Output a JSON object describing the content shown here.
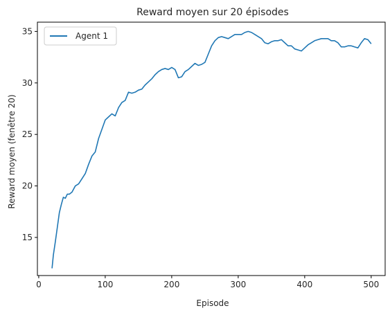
{
  "chart_data": {
    "type": "line",
    "title": "Reward moyen sur 20 épisodes",
    "xlabel": "Episode",
    "ylabel": "Reward moyen (fenêtre 20)",
    "xlim": [
      -2,
      521
    ],
    "ylim": [
      11.3,
      35.9
    ],
    "xticks": [
      0,
      100,
      200,
      300,
      400,
      500
    ],
    "yticks": [
      15,
      20,
      25,
      30,
      35
    ],
    "grid": false,
    "legend": "top-left",
    "series": [
      {
        "name": "Agent 1",
        "color": "#1f77b4",
        "x": [
          20,
          22,
          25,
          28,
          31,
          34,
          37,
          40,
          43,
          46,
          50,
          55,
          60,
          65,
          70,
          75,
          80,
          85,
          90,
          95,
          100,
          105,
          110,
          115,
          120,
          125,
          130,
          135,
          140,
          145,
          150,
          155,
          160,
          165,
          170,
          175,
          180,
          185,
          190,
          195,
          200,
          205,
          210,
          215,
          220,
          225,
          230,
          235,
          240,
          245,
          250,
          255,
          260,
          265,
          270,
          275,
          280,
          285,
          290,
          295,
          300,
          305,
          310,
          315,
          320,
          325,
          330,
          335,
          340,
          345,
          350,
          355,
          360,
          365,
          370,
          375,
          380,
          385,
          390,
          395,
          400,
          405,
          410,
          415,
          420,
          425,
          430,
          435,
          440,
          445,
          450,
          455,
          460,
          465,
          470,
          475,
          480,
          485,
          490,
          495,
          500
        ],
        "values": [
          12.0,
          13.3,
          14.6,
          16.0,
          17.4,
          18.2,
          18.9,
          18.8,
          19.2,
          19.2,
          19.4,
          20.0,
          20.2,
          20.7,
          21.2,
          22.1,
          22.9,
          23.3,
          24.6,
          25.5,
          26.4,
          26.7,
          27.0,
          26.8,
          27.6,
          28.1,
          28.3,
          29.1,
          29.0,
          29.1,
          29.3,
          29.4,
          29.8,
          30.1,
          30.4,
          30.8,
          31.1,
          31.3,
          31.4,
          31.3,
          31.5,
          31.3,
          30.5,
          30.6,
          31.1,
          31.3,
          31.6,
          31.9,
          31.7,
          31.8,
          32.0,
          32.8,
          33.6,
          34.1,
          34.4,
          34.5,
          34.4,
          34.3,
          34.5,
          34.7,
          34.7,
          34.7,
          34.9,
          35.0,
          34.9,
          34.7,
          34.5,
          34.3,
          33.9,
          33.8,
          34.0,
          34.1,
          34.1,
          34.2,
          33.9,
          33.6,
          33.6,
          33.3,
          33.2,
          33.1,
          33.4,
          33.7,
          33.9,
          34.1,
          34.2,
          34.3,
          34.3,
          34.3,
          34.1,
          34.1,
          33.9,
          33.5,
          33.5,
          33.6,
          33.6,
          33.5,
          33.4,
          33.9,
          34.3,
          34.2,
          33.8
        ]
      }
    ]
  }
}
